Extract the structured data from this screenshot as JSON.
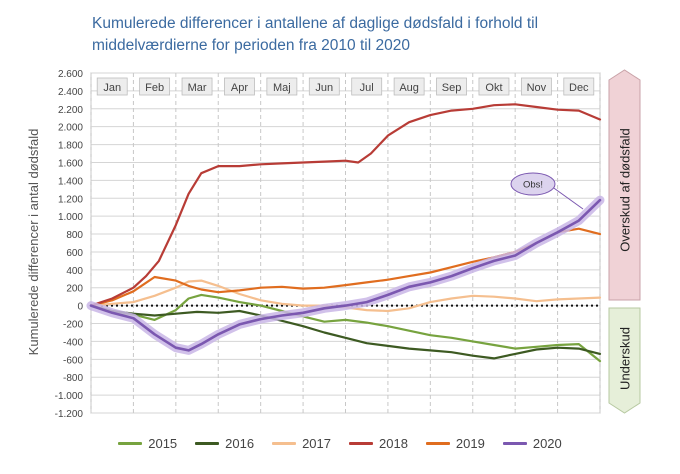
{
  "title_lines": [
    "Kumulerede differencer i antallene af daglige dødsfald i forhold til",
    "middelværdierne for perioden fra 2010 til 2020"
  ],
  "colors": {
    "2015": "#77a33f",
    "2016": "#3d5a22",
    "2017": "#f5bf8f",
    "2018": "#b83c36",
    "2019": "#e06d1f",
    "2020": "#7b58b0",
    "grid": "#d5d5d5",
    "title": "#3b6aa0",
    "excess_box": "#f0d2d6",
    "deficit_box": "#e6efd9"
  },
  "side_labels": {
    "excess": "Overskud af dødsfald",
    "deficit": "Underskud"
  },
  "annotation": {
    "text": "Obs!"
  },
  "chart_data": {
    "type": "line",
    "ylabel": "Kumulerede differencer i antal dødsfald",
    "xlabel": "",
    "ylim": [
      -1200,
      2600
    ],
    "yticks": [
      2600,
      2400,
      2200,
      2000,
      1800,
      1600,
      1400,
      1200,
      1000,
      800,
      600,
      400,
      200,
      0,
      -200,
      -400,
      -600,
      -800,
      -1000,
      -1200
    ],
    "ytick_labels": [
      "2.600",
      "2.400",
      "2.200",
      "2.000",
      "1.800",
      "1.600",
      "1.400",
      "1.200",
      "1.000",
      "800",
      "600",
      "400",
      "200",
      "0",
      "-200",
      "-400",
      "-600",
      "-800",
      "-1.000",
      "-1.200"
    ],
    "months": [
      "Jan",
      "Feb",
      "Mar",
      "Apr",
      "Maj",
      "Jun",
      "Jul",
      "Aug",
      "Sep",
      "Okt",
      "Nov",
      "Dec"
    ],
    "x_unit": "month",
    "xlim": [
      0,
      12
    ],
    "zero_line": "dotted",
    "grid": true,
    "legend_position": "bottom",
    "series": [
      {
        "name": "2015",
        "x": [
          0,
          0.5,
          1,
          1.5,
          2,
          2.3,
          2.6,
          3,
          3.5,
          4,
          4.5,
          5,
          5.5,
          6,
          6.5,
          7,
          7.5,
          8,
          8.5,
          9,
          9.5,
          10,
          10.5,
          11,
          11.5,
          12
        ],
        "y": [
          0,
          -80,
          -100,
          -160,
          -50,
          80,
          120,
          90,
          40,
          0,
          -60,
          -120,
          -180,
          -160,
          -190,
          -230,
          -280,
          -330,
          -360,
          -400,
          -440,
          -480,
          -460,
          -440,
          -430,
          -620
        ]
      },
      {
        "name": "2016",
        "x": [
          0,
          0.5,
          1,
          1.5,
          2,
          2.5,
          3,
          3.5,
          4,
          4.5,
          5,
          5.5,
          6,
          6.5,
          7,
          7.5,
          8,
          8.5,
          9,
          9.5,
          10,
          10.5,
          11,
          11.5,
          12
        ],
        "y": [
          0,
          -60,
          -90,
          -110,
          -90,
          -70,
          -80,
          -60,
          -110,
          -170,
          -230,
          -300,
          -360,
          -420,
          -450,
          -480,
          -500,
          -520,
          -560,
          -590,
          -540,
          -490,
          -470,
          -480,
          -540
        ]
      },
      {
        "name": "2017",
        "x": [
          0,
          0.5,
          1,
          1.5,
          2,
          2.3,
          2.6,
          3,
          3.5,
          4,
          4.5,
          5,
          5.5,
          6,
          6.5,
          7,
          7.5,
          8,
          8.5,
          9,
          9.5,
          10,
          10.5,
          11,
          11.5,
          12
        ],
        "y": [
          0,
          20,
          40,
          110,
          200,
          270,
          280,
          220,
          130,
          60,
          20,
          0,
          0,
          -20,
          -50,
          -60,
          -30,
          40,
          80,
          110,
          100,
          80,
          50,
          70,
          80,
          90
        ]
      },
      {
        "name": "2018",
        "x": [
          0,
          0.5,
          1,
          1.3,
          1.6,
          2,
          2.3,
          2.6,
          3,
          3.5,
          4,
          4.5,
          5,
          5.5,
          6,
          6.3,
          6.6,
          7,
          7.5,
          8,
          8.5,
          9,
          9.5,
          10,
          10.5,
          11,
          11.5,
          12
        ],
        "y": [
          0,
          80,
          200,
          330,
          500,
          900,
          1250,
          1480,
          1560,
          1560,
          1580,
          1590,
          1600,
          1610,
          1620,
          1600,
          1700,
          1900,
          2050,
          2130,
          2180,
          2200,
          2240,
          2250,
          2220,
          2190,
          2180,
          2080
        ]
      },
      {
        "name": "2019",
        "x": [
          0,
          0.5,
          1,
          1.5,
          2,
          2.3,
          2.6,
          3,
          3.5,
          4,
          4.5,
          5,
          5.5,
          6,
          6.5,
          7,
          7.5,
          8,
          8.5,
          9,
          9.5,
          10,
          10.5,
          11,
          11.5,
          12
        ],
        "y": [
          0,
          60,
          160,
          320,
          280,
          220,
          180,
          150,
          170,
          200,
          210,
          190,
          200,
          230,
          260,
          290,
          330,
          370,
          430,
          490,
          540,
          600,
          700,
          820,
          860,
          800
        ]
      },
      {
        "name": "2020",
        "x": [
          0,
          0.5,
          1,
          1.5,
          2,
          2.3,
          2.6,
          3,
          3.5,
          4,
          4.5,
          5,
          5.5,
          6,
          6.5,
          7,
          7.5,
          8,
          8.5,
          9,
          9.5,
          10,
          10.5,
          11,
          11.5,
          12
        ],
        "y": [
          0,
          -80,
          -140,
          -320,
          -470,
          -500,
          -430,
          -320,
          -210,
          -150,
          -110,
          -80,
          -30,
          0,
          40,
          120,
          210,
          260,
          330,
          420,
          500,
          560,
          700,
          820,
          950,
          1180
        ]
      }
    ]
  }
}
